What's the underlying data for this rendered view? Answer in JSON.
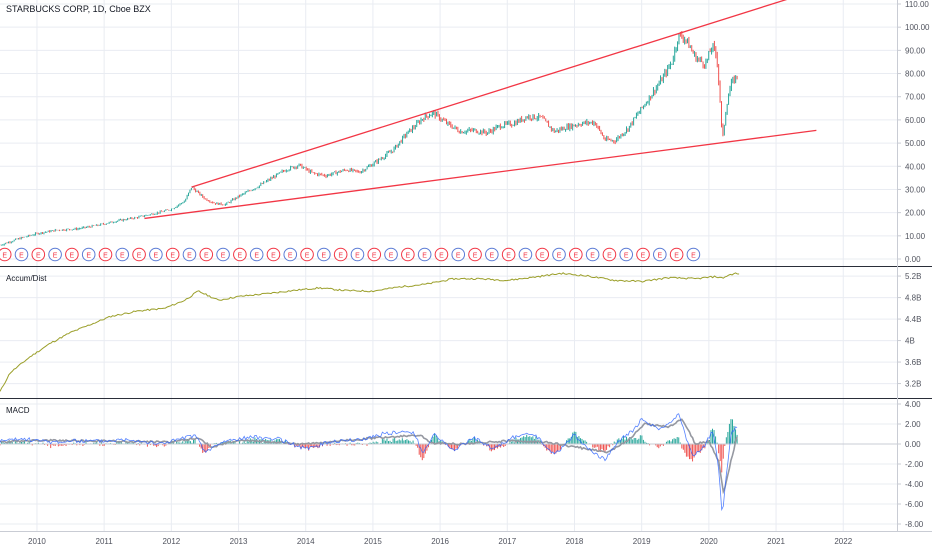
{
  "header": {
    "title": "STARBUCKS CORP, 1D, Cboe BZX"
  },
  "colors": {
    "background": "#ffffff",
    "up_candle": "#26a69a",
    "down_candle": "#ef5350",
    "trendline": "#f23645",
    "accum_dist": "#9b9f2a",
    "macd_line": "#2962ff",
    "signal_line": "#9598a1",
    "grid": "#e9ecf2",
    "axis_text": "#50535e",
    "earnings_marker": "#f23645"
  },
  "chart_data": [
    {
      "type": "candlestick",
      "pane": "price",
      "title": "STARBUCKS CORP, 1D, Cboe BZX",
      "y_ticks": [
        "110.00",
        "100.00",
        "90.00",
        "80.00",
        "70.00",
        "60.00",
        "50.00",
        "40.00",
        "30.00",
        "20.00",
        "10.00",
        "0.00"
      ],
      "ylim": [
        0,
        110
      ],
      "xlim": [
        2009.45,
        2022.8
      ],
      "x_ticks": [
        "2010",
        "2011",
        "2012",
        "2013",
        "2014",
        "2015",
        "2016",
        "2017",
        "2018",
        "2019",
        "2020",
        "2021",
        "2022"
      ],
      "earnings_marker_label": "E",
      "earnings_count": 42,
      "price_path": [
        [
          2009.45,
          6.0
        ],
        [
          2009.7,
          8.5
        ],
        [
          2010.0,
          11.0
        ],
        [
          2010.3,
          12.5
        ],
        [
          2010.6,
          13.0
        ],
        [
          2010.9,
          14.5
        ],
        [
          2011.2,
          16.5
        ],
        [
          2011.5,
          18.0
        ],
        [
          2011.8,
          20.0
        ],
        [
          2012.0,
          21.5
        ],
        [
          2012.2,
          25.0
        ],
        [
          2012.3,
          31.0
        ],
        [
          2012.5,
          26.0
        ],
        [
          2012.65,
          24.0
        ],
        [
          2012.8,
          23.5
        ],
        [
          2013.0,
          27.0
        ],
        [
          2013.3,
          31.5
        ],
        [
          2013.5,
          35.0
        ],
        [
          2013.7,
          38.5
        ],
        [
          2013.9,
          40.5
        ],
        [
          2014.1,
          37.0
        ],
        [
          2014.3,
          36.0
        ],
        [
          2014.6,
          38.5
        ],
        [
          2014.8,
          37.5
        ],
        [
          2015.0,
          41.0
        ],
        [
          2015.3,
          47.0
        ],
        [
          2015.5,
          54.0
        ],
        [
          2015.65,
          58.0
        ],
        [
          2015.75,
          61.0
        ],
        [
          2015.9,
          63.0
        ],
        [
          2016.1,
          58.5
        ],
        [
          2016.3,
          55.0
        ],
        [
          2016.5,
          55.5
        ],
        [
          2016.7,
          54.5
        ],
        [
          2016.9,
          57.5
        ],
        [
          2017.1,
          58.5
        ],
        [
          2017.3,
          61.5
        ],
        [
          2017.5,
          61.0
        ],
        [
          2017.7,
          55.0
        ],
        [
          2017.9,
          57.0
        ],
        [
          2018.1,
          58.5
        ],
        [
          2018.3,
          59.0
        ],
        [
          2018.45,
          51.5
        ],
        [
          2018.6,
          51.0
        ],
        [
          2018.8,
          56.5
        ],
        [
          2018.95,
          63.0
        ],
        [
          2019.1,
          69.0
        ],
        [
          2019.3,
          77.5
        ],
        [
          2019.45,
          85.0
        ],
        [
          2019.55,
          96.5
        ],
        [
          2019.65,
          95.0
        ],
        [
          2019.8,
          87.0
        ],
        [
          2019.95,
          84.0
        ],
        [
          2020.05,
          92.0
        ],
        [
          2020.12,
          87.0
        ],
        [
          2020.17,
          67.0
        ],
        [
          2020.2,
          50.5
        ],
        [
          2020.26,
          66.0
        ],
        [
          2020.33,
          75.5
        ],
        [
          2020.42,
          79.0
        ]
      ],
      "trendlines": [
        {
          "from": [
            2012.3,
            31.0
          ],
          "to": [
            2021.6,
            116.0
          ]
        },
        {
          "from": [
            2011.6,
            17.5
          ],
          "to": [
            2021.6,
            55.5
          ]
        }
      ]
    },
    {
      "type": "line",
      "pane": "indicator",
      "title": "Accum/Dist",
      "y_ticks": [
        "5.2B",
        "4.8B",
        "4.4B",
        "4B",
        "3.6B",
        "3.2B"
      ],
      "ylim": [
        2.95,
        5.35
      ],
      "unit": "B",
      "series": [
        {
          "name": "Accum/Dist",
          "points": [
            [
              2009.45,
              3.05
            ],
            [
              2009.6,
              3.4
            ],
            [
              2009.9,
              3.7
            ],
            [
              2010.2,
              3.95
            ],
            [
              2010.5,
              4.15
            ],
            [
              2010.8,
              4.3
            ],
            [
              2011.1,
              4.45
            ],
            [
              2011.5,
              4.55
            ],
            [
              2011.9,
              4.6
            ],
            [
              2012.2,
              4.75
            ],
            [
              2012.4,
              4.92
            ],
            [
              2012.7,
              4.75
            ],
            [
              2013.0,
              4.82
            ],
            [
              2013.4,
              4.87
            ],
            [
              2013.8,
              4.93
            ],
            [
              2014.2,
              4.98
            ],
            [
              2014.6,
              4.93
            ],
            [
              2015.0,
              4.92
            ],
            [
              2015.4,
              5.0
            ],
            [
              2015.8,
              5.05
            ],
            [
              2016.2,
              5.15
            ],
            [
              2016.6,
              5.15
            ],
            [
              2017.0,
              5.12
            ],
            [
              2017.4,
              5.18
            ],
            [
              2017.8,
              5.25
            ],
            [
              2018.2,
              5.2
            ],
            [
              2018.6,
              5.12
            ],
            [
              2019.0,
              5.1
            ],
            [
              2019.4,
              5.17
            ],
            [
              2019.8,
              5.15
            ],
            [
              2020.1,
              5.19
            ],
            [
              2020.2,
              5.16
            ],
            [
              2020.3,
              5.22
            ],
            [
              2020.4,
              5.25
            ],
            [
              2020.45,
              5.23
            ]
          ]
        }
      ]
    },
    {
      "type": "line",
      "pane": "indicator",
      "title": "MACD",
      "y_ticks": [
        "4.00",
        "2.00",
        "0.00",
        "-2.00",
        "-4.00",
        "-6.00",
        "-8.00"
      ],
      "ylim": [
        -8.6,
        4.4
      ],
      "series": [
        {
          "name": "MACD",
          "points": [
            [
              2009.45,
              0.3
            ],
            [
              2009.8,
              0.5
            ],
            [
              2010.2,
              0.2
            ],
            [
              2010.6,
              0.3
            ],
            [
              2011.0,
              0.3
            ],
            [
              2011.4,
              0.5
            ],
            [
              2011.8,
              0.0
            ],
            [
              2012.2,
              0.6
            ],
            [
              2012.35,
              0.9
            ],
            [
              2012.5,
              -0.8
            ],
            [
              2012.8,
              0.3
            ],
            [
              2013.2,
              0.7
            ],
            [
              2013.6,
              0.5
            ],
            [
              2014.0,
              -0.5
            ],
            [
              2014.4,
              0.3
            ],
            [
              2014.8,
              0.4
            ],
            [
              2015.2,
              1.1
            ],
            [
              2015.6,
              1.2
            ],
            [
              2015.75,
              -0.9
            ],
            [
              2015.9,
              1.0
            ],
            [
              2016.2,
              -0.6
            ],
            [
              2016.5,
              0.6
            ],
            [
              2016.8,
              -0.5
            ],
            [
              2017.1,
              0.7
            ],
            [
              2017.4,
              1.0
            ],
            [
              2017.7,
              -1.1
            ],
            [
              2018.0,
              0.9
            ],
            [
              2018.2,
              -0.5
            ],
            [
              2018.45,
              -1.6
            ],
            [
              2018.7,
              0.6
            ],
            [
              2018.9,
              1.5
            ],
            [
              2019.0,
              2.6
            ],
            [
              2019.15,
              1.8
            ],
            [
              2019.3,
              1.5
            ],
            [
              2019.45,
              2.2
            ],
            [
              2019.55,
              3.0
            ],
            [
              2019.75,
              -1.2
            ],
            [
              2019.9,
              -0.6
            ],
            [
              2020.05,
              1.3
            ],
            [
              2020.12,
              -1.0
            ],
            [
              2020.17,
              -4.5
            ],
            [
              2020.2,
              -7.3
            ],
            [
              2020.26,
              -3.0
            ],
            [
              2020.33,
              1.0
            ],
            [
              2020.42,
              1.8
            ]
          ]
        },
        {
          "name": "Signal",
          "points": [
            [
              2009.45,
              0.2
            ],
            [
              2010.0,
              0.35
            ],
            [
              2011.0,
              0.3
            ],
            [
              2012.0,
              0.2
            ],
            [
              2012.4,
              0.6
            ],
            [
              2012.6,
              -0.3
            ],
            [
              2013.0,
              0.4
            ],
            [
              2014.0,
              0.0
            ],
            [
              2015.0,
              0.6
            ],
            [
              2015.7,
              0.9
            ],
            [
              2015.85,
              0.1
            ],
            [
              2016.3,
              0.0
            ],
            [
              2017.0,
              0.3
            ],
            [
              2017.6,
              0.2
            ],
            [
              2017.9,
              -0.2
            ],
            [
              2018.5,
              -0.8
            ],
            [
              2018.8,
              0.4
            ],
            [
              2019.05,
              2.0
            ],
            [
              2019.4,
              1.7
            ],
            [
              2019.6,
              2.5
            ],
            [
              2019.8,
              0.0
            ],
            [
              2020.0,
              0.3
            ],
            [
              2020.15,
              -1.8
            ],
            [
              2020.22,
              -5.0
            ],
            [
              2020.3,
              -2.5
            ],
            [
              2020.42,
              0.8
            ]
          ]
        }
      ]
    }
  ]
}
